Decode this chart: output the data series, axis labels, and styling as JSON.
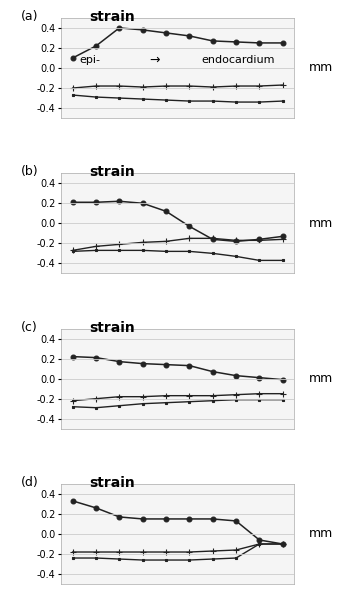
{
  "panels": [
    {
      "label": "(a)",
      "title": "strain",
      "x": [
        0,
        1,
        2,
        3,
        4,
        5,
        6,
        7,
        8,
        9
      ],
      "series": [
        {
          "y": [
            0.1,
            0.22,
            0.4,
            0.38,
            0.35,
            0.32,
            0.27,
            0.26,
            0.25,
            0.25
          ],
          "marker": "o",
          "markersize": 3.5,
          "color": "#222222",
          "linewidth": 1.1
        },
        {
          "y": [
            -0.2,
            -0.18,
            -0.18,
            -0.19,
            -0.18,
            -0.18,
            -0.19,
            -0.18,
            -0.18,
            -0.17
          ],
          "marker": "+",
          "markersize": 5,
          "color": "#222222",
          "linewidth": 1.0
        },
        {
          "y": [
            -0.27,
            -0.29,
            -0.3,
            -0.31,
            -0.32,
            -0.33,
            -0.33,
            -0.34,
            -0.34,
            -0.33
          ],
          "marker": "s",
          "markersize": 2,
          "color": "#222222",
          "linewidth": 1.0
        }
      ],
      "epi_text": "epi-",
      "arrow_text": "→",
      "endo_text": "endocardium",
      "ylim": [
        -0.5,
        0.5
      ],
      "yticks": [
        -0.4,
        -0.2,
        0,
        0.2,
        0.4
      ],
      "show_mm": true
    },
    {
      "label": "(b)",
      "title": "strain",
      "x": [
        0,
        1,
        2,
        3,
        4,
        5,
        6,
        7,
        8,
        9
      ],
      "series": [
        {
          "y": [
            0.21,
            0.21,
            0.22,
            0.2,
            0.12,
            -0.03,
            -0.16,
            -0.18,
            -0.16,
            -0.13
          ],
          "marker": "o",
          "markersize": 3.5,
          "color": "#222222",
          "linewidth": 1.1
        },
        {
          "y": [
            -0.27,
            -0.23,
            -0.21,
            -0.19,
            -0.18,
            -0.15,
            -0.15,
            -0.17,
            -0.17,
            -0.16
          ],
          "marker": "+",
          "markersize": 5,
          "color": "#222222",
          "linewidth": 1.0
        },
        {
          "y": [
            -0.28,
            -0.27,
            -0.27,
            -0.27,
            -0.28,
            -0.28,
            -0.3,
            -0.33,
            -0.37,
            -0.37
          ],
          "marker": "s",
          "markersize": 2,
          "color": "#222222",
          "linewidth": 1.0
        }
      ],
      "epi_text": null,
      "arrow_text": null,
      "endo_text": null,
      "ylim": [
        -0.5,
        0.5
      ],
      "yticks": [
        -0.4,
        -0.2,
        0,
        0.2,
        0.4
      ],
      "show_mm": true
    },
    {
      "label": "(c)",
      "title": "strain",
      "x": [
        0,
        1,
        2,
        3,
        4,
        5,
        6,
        7,
        8,
        9
      ],
      "series": [
        {
          "y": [
            0.22,
            0.21,
            0.17,
            0.15,
            0.14,
            0.13,
            0.07,
            0.03,
            0.01,
            -0.01
          ],
          "marker": "o",
          "markersize": 3.5,
          "color": "#222222",
          "linewidth": 1.1
        },
        {
          "y": [
            -0.22,
            -0.2,
            -0.18,
            -0.18,
            -0.17,
            -0.17,
            -0.17,
            -0.16,
            -0.15,
            -0.15
          ],
          "marker": "+",
          "markersize": 5,
          "color": "#222222",
          "linewidth": 1.0
        },
        {
          "y": [
            -0.28,
            -0.29,
            -0.27,
            -0.25,
            -0.24,
            -0.23,
            -0.22,
            -0.21,
            -0.21,
            -0.21
          ],
          "marker": "s",
          "markersize": 2,
          "color": "#222222",
          "linewidth": 1.0
        }
      ],
      "epi_text": null,
      "arrow_text": null,
      "endo_text": null,
      "ylim": [
        -0.5,
        0.5
      ],
      "yticks": [
        -0.4,
        -0.2,
        0,
        0.2,
        0.4
      ],
      "show_mm": true
    },
    {
      "label": "(d)",
      "title": "strain",
      "x": [
        0,
        1,
        2,
        3,
        4,
        5,
        6,
        7,
        8,
        9
      ],
      "series": [
        {
          "y": [
            0.33,
            0.26,
            0.17,
            0.15,
            0.15,
            0.15,
            0.15,
            0.13,
            -0.06,
            -0.1
          ],
          "marker": "o",
          "markersize": 3.5,
          "color": "#222222",
          "linewidth": 1.1
        },
        {
          "y": [
            -0.18,
            -0.18,
            -0.18,
            -0.18,
            -0.18,
            -0.18,
            -0.17,
            -0.16,
            -0.1,
            -0.1
          ],
          "marker": "+",
          "markersize": 5,
          "color": "#222222",
          "linewidth": 1.0
        },
        {
          "y": [
            -0.24,
            -0.24,
            -0.25,
            -0.26,
            -0.26,
            -0.26,
            -0.25,
            -0.24,
            -0.1,
            -0.1
          ],
          "marker": "s",
          "markersize": 2,
          "color": "#222222",
          "linewidth": 1.0
        }
      ],
      "epi_text": null,
      "arrow_text": null,
      "endo_text": null,
      "ylim": [
        -0.5,
        0.5
      ],
      "yticks": [
        -0.4,
        -0.2,
        0,
        0.2,
        0.4
      ],
      "show_mm": true
    }
  ],
  "plot_bg": "#f5f5f5",
  "grid_color": "#cccccc",
  "figure_bg": "#ffffff",
  "label_fontsize": 9,
  "title_fontsize": 10,
  "tick_fontsize": 7,
  "mm_fontsize": 9
}
